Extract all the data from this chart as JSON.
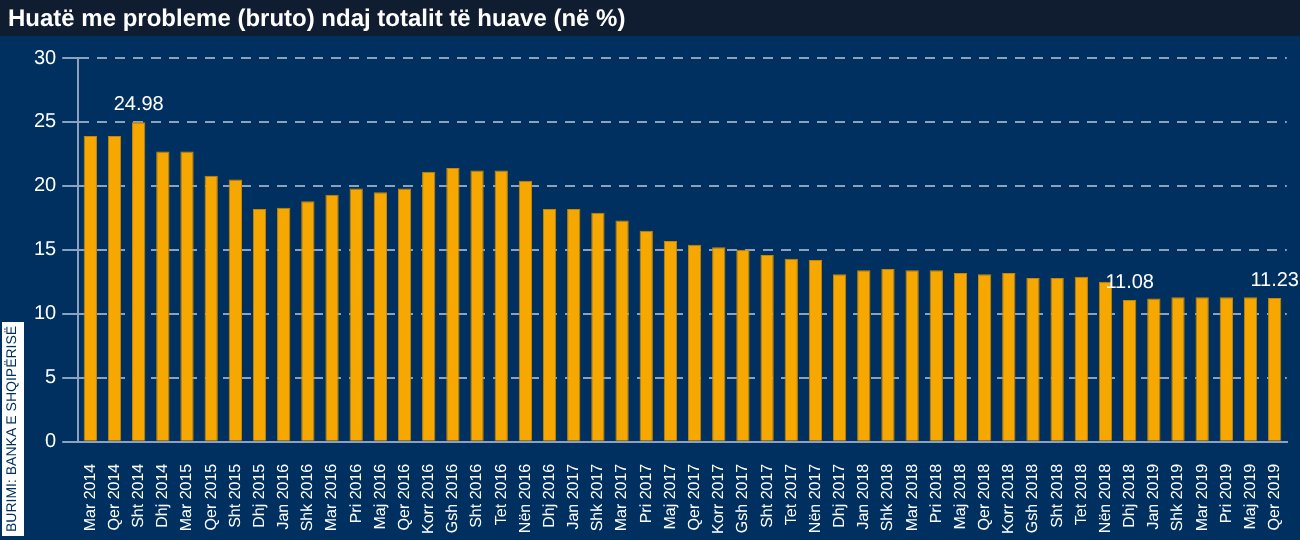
{
  "chart_data": {
    "type": "bar",
    "title": "Huatë me probleme (bruto) ndaj totalit të huave (në %)",
    "categories": [
      "Mar 2014",
      "Qer 2014",
      "Sht 2014",
      "Dhj 2014",
      "Mar 2015",
      "Qer 2015",
      "Sht 2015",
      "Dhj 2015",
      "Jan 2016",
      "Shk 2016",
      "Mar 2016",
      "Pri 2016",
      "Maj 2016",
      "Qer 2016",
      "Korr 2016",
      "Gsh 2016",
      "Sht 2016",
      "Tet 2016",
      "Nën 2016",
      "Dhj 2016",
      "Jan 2017",
      "Shk 2017",
      "Mar 2017",
      "Pri 2017",
      "Maj 2017",
      "Qer 2017",
      "Korr 2017",
      "Gsh 2017",
      "Sht 2017",
      "Tet 2017",
      "Nën 2017",
      "Dhj 2017",
      "Jan 2018",
      "Shk 2018",
      "Mar 2018",
      "Pri 2018",
      "Maj 2018",
      "Qer 2018",
      "Korr 2018",
      "Gsh 2018",
      "Sht 2018",
      "Tet 2018",
      "Nën 2018",
      "Dhj 2018",
      "Jan 2019",
      "Shk 2019",
      "Mar 2019",
      "Pri 2019",
      "Maj 2019",
      "Qer 2019"
    ],
    "values": [
      23.9,
      23.9,
      24.98,
      22.7,
      22.7,
      20.8,
      20.5,
      18.2,
      18.3,
      18.8,
      19.3,
      19.8,
      19.5,
      19.8,
      21.1,
      21.4,
      21.2,
      21.2,
      20.4,
      18.2,
      18.2,
      17.9,
      17.3,
      16.5,
      15.7,
      15.4,
      15.2,
      15.0,
      14.6,
      14.3,
      14.2,
      13.1,
      13.4,
      13.5,
      13.4,
      13.4,
      13.2,
      13.1,
      13.2,
      12.8,
      12.8,
      12.9,
      12.5,
      11.08,
      11.2,
      11.3,
      11.3,
      11.3,
      11.3,
      11.23
    ],
    "value_labels": [
      null,
      null,
      "24.98",
      null,
      null,
      null,
      null,
      null,
      null,
      null,
      null,
      null,
      null,
      null,
      null,
      null,
      null,
      null,
      null,
      null,
      null,
      null,
      null,
      null,
      null,
      null,
      null,
      null,
      null,
      null,
      null,
      null,
      null,
      null,
      null,
      null,
      null,
      null,
      null,
      null,
      null,
      null,
      null,
      "11.08",
      null,
      null,
      null,
      null,
      null,
      "11.23"
    ],
    "color": "#f7a800",
    "ylim": [
      0,
      30
    ],
    "yticks": [
      0,
      5,
      10,
      15,
      20,
      25,
      30
    ],
    "grid": "y",
    "legend": false,
    "annotations": [
      "BURIMI: BANKA E SHQIPËRISË"
    ]
  }
}
